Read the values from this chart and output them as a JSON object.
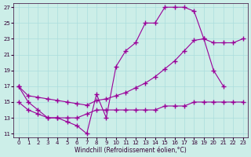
{
  "xlabel": "Windchill (Refroidissement éolien,°C)",
  "bg_color": "#cceee8",
  "grid_color": "#aadddd",
  "line_color": "#990099",
  "xlim_min": -0.5,
  "xlim_max": 23.5,
  "ylim_min": 10.5,
  "ylim_max": 27.5,
  "xticks": [
    0,
    1,
    2,
    3,
    4,
    5,
    6,
    7,
    8,
    9,
    10,
    11,
    12,
    13,
    14,
    15,
    16,
    17,
    18,
    19,
    20,
    21,
    22,
    23
  ],
  "yticks": [
    11,
    13,
    15,
    17,
    19,
    21,
    23,
    25,
    27
  ],
  "curve1_x": [
    0,
    1,
    2,
    3,
    4,
    5,
    6,
    7,
    8,
    9,
    10,
    11,
    12,
    13,
    14,
    15,
    16,
    17,
    18,
    19,
    20,
    21
  ],
  "curve1_y": [
    17,
    15,
    14,
    13,
    13,
    12.5,
    12,
    11,
    16,
    13,
    19.5,
    21.5,
    22.5,
    25,
    25,
    27,
    27,
    27,
    26.5,
    23,
    19,
    17
  ],
  "curve2_x": [
    0,
    1,
    2,
    3,
    4,
    5,
    6,
    7,
    8,
    9,
    10,
    11,
    12,
    13,
    14,
    15,
    16,
    17,
    18,
    19,
    20,
    21,
    22,
    23
  ],
  "curve2_y": [
    17,
    15.8,
    15.6,
    15.4,
    15.2,
    15.0,
    14.8,
    14.6,
    15.2,
    15.4,
    15.8,
    16.2,
    16.8,
    17.4,
    18.2,
    19.2,
    20.2,
    21.5,
    22.8,
    23.0,
    22.5,
    22.5,
    22.5,
    23.0
  ],
  "curve3_x": [
    0,
    1,
    2,
    3,
    4,
    5,
    6,
    7,
    8,
    9,
    10,
    11,
    12,
    13,
    14,
    15,
    16,
    17,
    18,
    19,
    20,
    21,
    22,
    23
  ],
  "curve3_y": [
    15,
    14,
    13.5,
    13,
    13,
    13,
    13,
    13.5,
    14,
    14,
    14,
    14,
    14,
    14,
    14,
    14.5,
    14.5,
    14.5,
    15,
    15,
    15,
    15,
    15,
    15
  ],
  "marker": "+",
  "markersize": 4,
  "markeredgewidth": 1.0,
  "linewidth": 0.8,
  "tick_fontsize": 5,
  "xlabel_fontsize": 5.5
}
